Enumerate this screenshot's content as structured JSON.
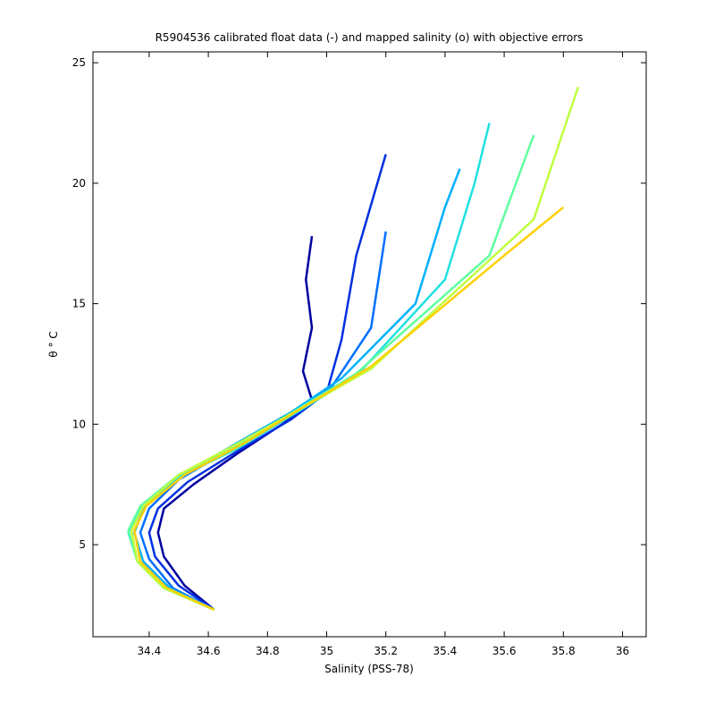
{
  "chart_data": {
    "type": "line",
    "title": "R5904536 calibrated float data (-) and mapped salinity (o) with objective errors",
    "x_label": "Salinity (PSS-78)",
    "y_label": "θ ° C",
    "xlim": [
      34.21,
      36.08
    ],
    "ylim": [
      1.18,
      25.45
    ],
    "xticks": [
      34.4,
      34.6,
      34.8,
      35,
      35.2,
      35.4,
      35.6,
      35.8,
      36
    ],
    "yticks": [
      5,
      10,
      15,
      20,
      25
    ],
    "series": [
      {
        "color": "#0000a0",
        "x": [
          34.62,
          34.52,
          34.45,
          34.43,
          34.45,
          34.55,
          34.7,
          34.85,
          34.95,
          34.92,
          34.95,
          34.93,
          34.95
        ],
        "values": [
          2.3,
          3.3,
          4.5,
          5.5,
          6.5,
          7.5,
          8.8,
          10,
          11,
          12.2,
          14,
          16,
          17.8
        ]
      },
      {
        "color": "#0030e0",
        "x": [
          34.62,
          34.5,
          34.42,
          34.4,
          34.43,
          34.53,
          34.7,
          34.88,
          35.0,
          35.05,
          35.1,
          35.2
        ],
        "values": [
          2.3,
          3.3,
          4.5,
          5.5,
          6.5,
          7.6,
          8.9,
          10.2,
          11.3,
          13.5,
          17,
          21.2
        ]
      },
      {
        "color": "#0070ff",
        "x": [
          34.62,
          34.48,
          34.4,
          34.37,
          34.4,
          34.5,
          34.68,
          34.88,
          35.02,
          35.15,
          35.2
        ],
        "values": [
          2.3,
          3.2,
          4.4,
          5.5,
          6.5,
          7.7,
          9,
          10.4,
          11.6,
          14,
          18
        ]
      },
      {
        "color": "#00b0ff",
        "x": [
          34.62,
          34.47,
          34.38,
          34.35,
          34.38,
          34.5,
          34.68,
          34.88,
          35.05,
          35.3,
          35.4,
          35.45
        ],
        "values": [
          2.3,
          3.2,
          4.3,
          5.5,
          6.5,
          7.8,
          9.1,
          10.5,
          11.9,
          15,
          19,
          20.6
        ]
      },
      {
        "color": "#20e0e0",
        "x": [
          34.62,
          34.45,
          34.36,
          34.33,
          34.37,
          34.5,
          34.7,
          34.9,
          35.1,
          35.4,
          35.5,
          35.55
        ],
        "values": [
          2.3,
          3.2,
          4.3,
          5.5,
          6.5,
          7.8,
          9,
          10.5,
          12,
          16,
          20,
          22.5
        ]
      },
      {
        "color": "#60ffa0",
        "x": [
          34.62,
          34.45,
          34.36,
          34.33,
          34.37,
          34.5,
          34.7,
          34.9,
          35.1,
          35.55,
          35.7
        ],
        "values": [
          2.3,
          3.2,
          4.3,
          5.6,
          6.6,
          7.9,
          9.1,
          10.6,
          12.1,
          17,
          22
        ]
      },
      {
        "color": "#c0ff40",
        "x": [
          34.62,
          34.45,
          34.36,
          34.34,
          34.38,
          34.5,
          34.7,
          34.92,
          35.15,
          35.7,
          35.85
        ],
        "values": [
          2.3,
          3.2,
          4.3,
          5.6,
          6.6,
          7.9,
          9.2,
          10.7,
          12.3,
          18.5,
          24
        ]
      },
      {
        "color": "#ffd000",
        "x": [
          34.62,
          34.46,
          34.37,
          34.35,
          34.39,
          34.52,
          34.72,
          34.92,
          35.15,
          35.6,
          35.8
        ],
        "values": [
          2.3,
          3.2,
          4.3,
          5.6,
          6.6,
          7.9,
          9.2,
          10.7,
          12.4,
          17,
          19
        ]
      }
    ]
  }
}
